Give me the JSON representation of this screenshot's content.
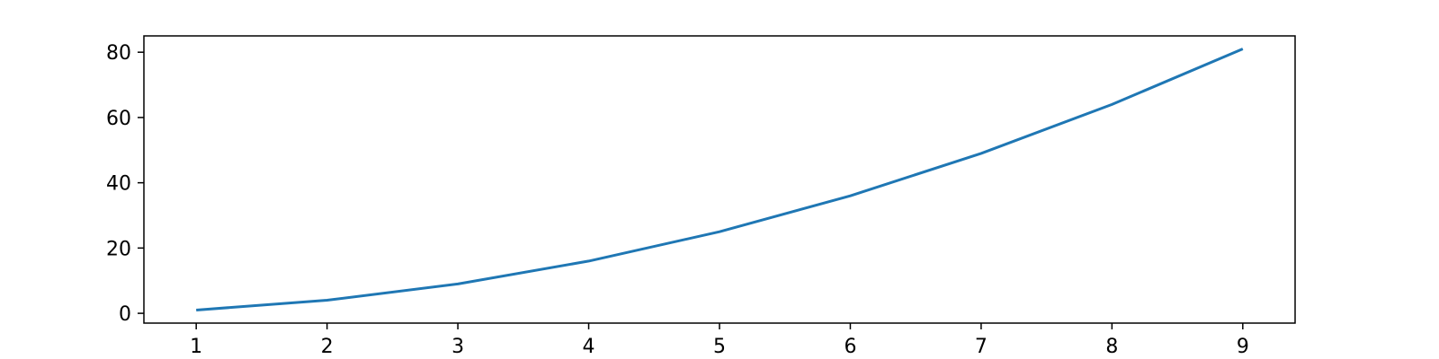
{
  "chart_data": {
    "type": "line",
    "title": "",
    "xlabel": "",
    "ylabel": "",
    "x": [
      1,
      2,
      3,
      4,
      5,
      6,
      7,
      8,
      9
    ],
    "series": [
      {
        "values": [
          1,
          4,
          9,
          16,
          25,
          36,
          49,
          64,
          81
        ],
        "color": "#1f77b4"
      }
    ],
    "xlim": [
      0.6,
      9.4
    ],
    "ylim": [
      -3,
      85
    ],
    "xticks": [
      1,
      2,
      3,
      4,
      5,
      6,
      7,
      8,
      9
    ],
    "yticks": [
      0,
      20,
      40,
      60,
      80
    ],
    "xtick_labels": [
      "1",
      "2",
      "3",
      "4",
      "5",
      "6",
      "7",
      "8",
      "9"
    ],
    "ytick_labels": [
      "0",
      "20",
      "40",
      "60",
      "80"
    ],
    "grid": false,
    "legend": "none"
  }
}
